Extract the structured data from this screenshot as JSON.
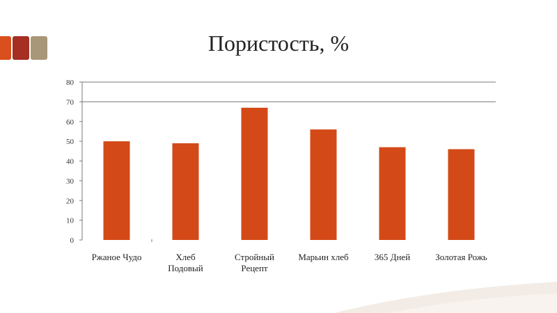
{
  "slide": {
    "title": "Пористость, %",
    "decor_colors": [
      "#D9501E",
      "#A42F22",
      "#A89779"
    ]
  },
  "chart_data": {
    "type": "bar",
    "title": "Пористость, %",
    "categories": [
      [
        "Ржаное Чудо"
      ],
      [
        "Хлеб",
        "Подовый"
      ],
      [
        "Стройный",
        "Рецепт"
      ],
      [
        "Марьин хлеб"
      ],
      [
        "365 Дней"
      ],
      [
        "Золотая Рожь"
      ]
    ],
    "values": [
      50,
      49,
      67,
      56,
      47,
      46
    ],
    "ylim": [
      0,
      80
    ],
    "yticks": [
      0,
      10,
      20,
      30,
      40,
      50,
      60,
      70,
      80
    ],
    "gridlines": [
      70,
      80
    ],
    "bar_color": "#D34A18",
    "xlabel": "",
    "ylabel": ""
  }
}
